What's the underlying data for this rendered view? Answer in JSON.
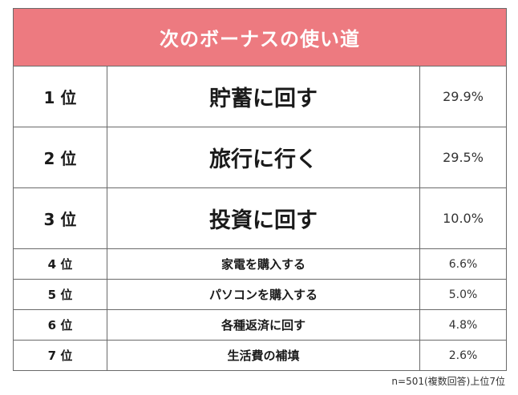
{
  "title": "次のボーナスの使い道",
  "rows": [
    {
      "rank": "1 位",
      "item": "貯蓄に回す",
      "percent": "29.9%"
    },
    {
      "rank": "2 位",
      "item": "旅行に行く",
      "percent": "29.5%"
    },
    {
      "rank": "3 位",
      "item": "投資に回す",
      "percent": "10.0%"
    },
    {
      "rank": "4 位",
      "item": "家電を購入する",
      "percent": "6.6%"
    },
    {
      "rank": "5 位",
      "item": "パソコンを購入する",
      "percent": "5.0%"
    },
    {
      "rank": "6 位",
      "item": "各種返済に回す",
      "percent": "4.8%"
    },
    {
      "rank": "7 位",
      "item": "生活費の補填",
      "percent": "2.6%"
    }
  ],
  "footnote": "n=501(複数回答)上位7位",
  "colors": {
    "header_background": "#ed7a80",
    "header_text": "#ffffff",
    "border": "#6a6a6a"
  }
}
